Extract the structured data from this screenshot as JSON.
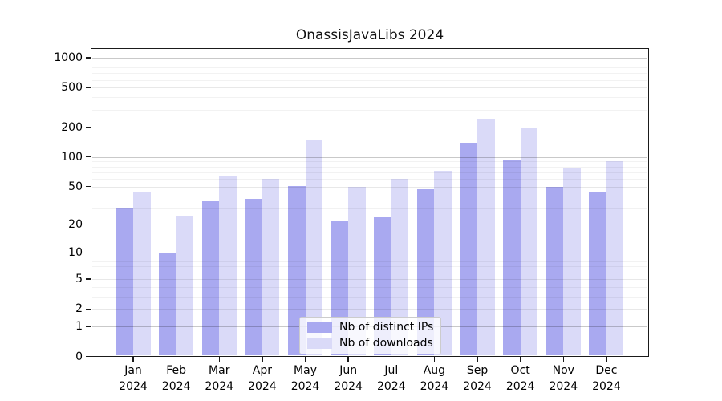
{
  "title": "OnassisJavaLibs 2024",
  "chart_data": {
    "type": "bar",
    "title": "OnassisJavaLibs 2024",
    "categories": [
      "Jan",
      "Feb",
      "Mar",
      "Apr",
      "May",
      "Jun",
      "Jul",
      "Aug",
      "Sep",
      "Oct",
      "Nov",
      "Dec"
    ],
    "x_year_label": "2024",
    "series": [
      {
        "name": "Nb of distinct IPs",
        "color": "#a9a9f0",
        "values": [
          30,
          10,
          35,
          37,
          51,
          22,
          24,
          47,
          140,
          93,
          50,
          44
        ]
      },
      {
        "name": "Nb of downloads",
        "color": "#dadaf8",
        "values": [
          44,
          25,
          64,
          60,
          150,
          50,
          60,
          72,
          240,
          200,
          77,
          91
        ]
      }
    ],
    "y_ticks": [
      0,
      1,
      2,
      5,
      10,
      20,
      50,
      100,
      200,
      500,
      1000
    ],
    "y_scale": "log1p",
    "ylim": [
      0,
      1250
    ],
    "xlabel": "",
    "ylabel": "",
    "grid": true,
    "legend_position": "lower center"
  }
}
